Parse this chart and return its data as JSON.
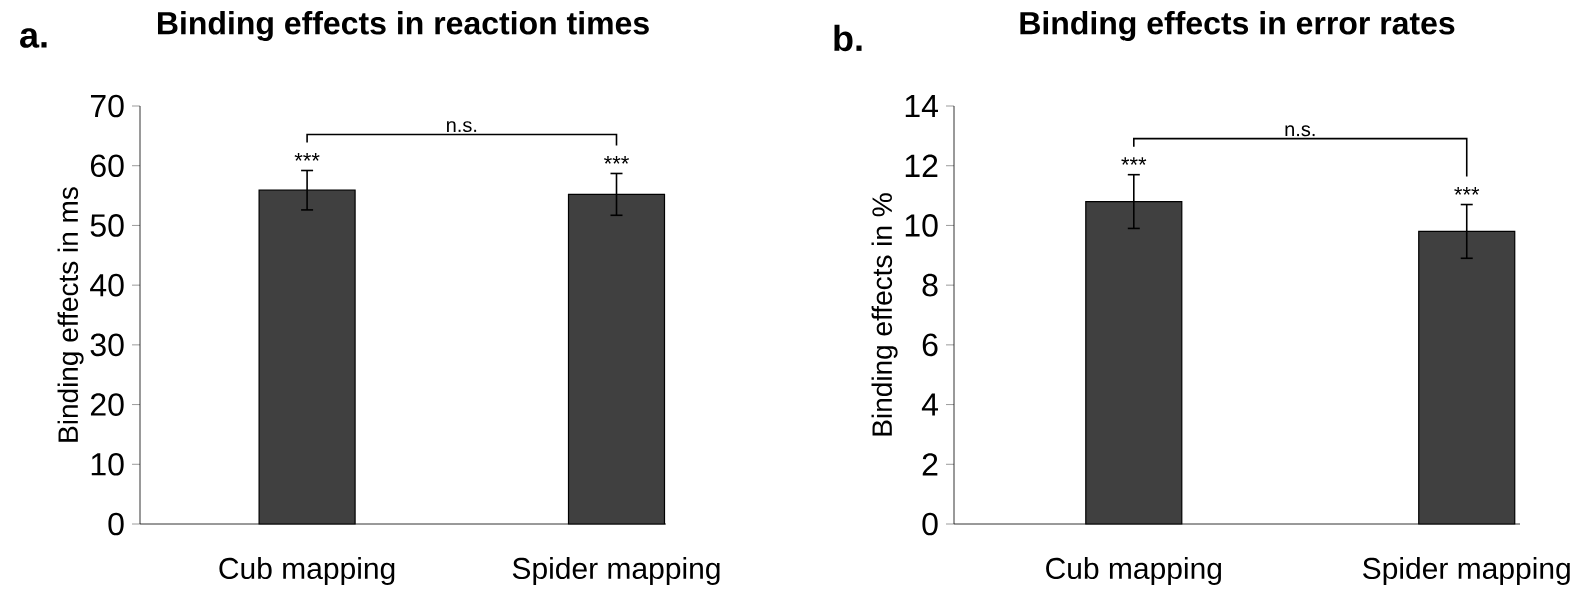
{
  "chart_data": [
    {
      "type": "bar",
      "title": "Binding effects in reaction times",
      "ylabel": "Binding effects in ms",
      "categories": [
        "Cub mapping",
        "Spider mapping"
      ],
      "values": [
        55.9,
        55.2
      ],
      "errors": [
        3.3,
        3.5
      ],
      "color": "#404040",
      "ylim": [
        0,
        70
      ],
      "yticks": [
        0,
        10,
        20,
        30,
        40,
        50,
        60,
        70
      ],
      "annotations": [
        "a.",
        {
          "text": "***",
          "x": "Cub mapping",
          "y": 59.2
        },
        {
          "text": "***",
          "x": "Spider mapping",
          "y": 58.7
        },
        "n.s."
      ]
    },
    {
      "type": "bar",
      "title": "Binding effects in error rates",
      "ylabel": "Binding effects in %",
      "categories": [
        "Cub mapping",
        "Spider mapping"
      ],
      "values": [
        10.8,
        9.8
      ],
      "errors": [
        0.9,
        0.9
      ],
      "color": "#404040",
      "ylim": [
        0,
        14
      ],
      "yticks": [
        0,
        2,
        4,
        6,
        8,
        10,
        12,
        14
      ],
      "annotations": [
        "b.",
        {
          "text": "***",
          "x": "Cub mapping",
          "y": 11.7
        },
        {
          "text": "***",
          "x": "Spider mapping",
          "y": 10.7
        },
        "n.s."
      ]
    }
  ]
}
